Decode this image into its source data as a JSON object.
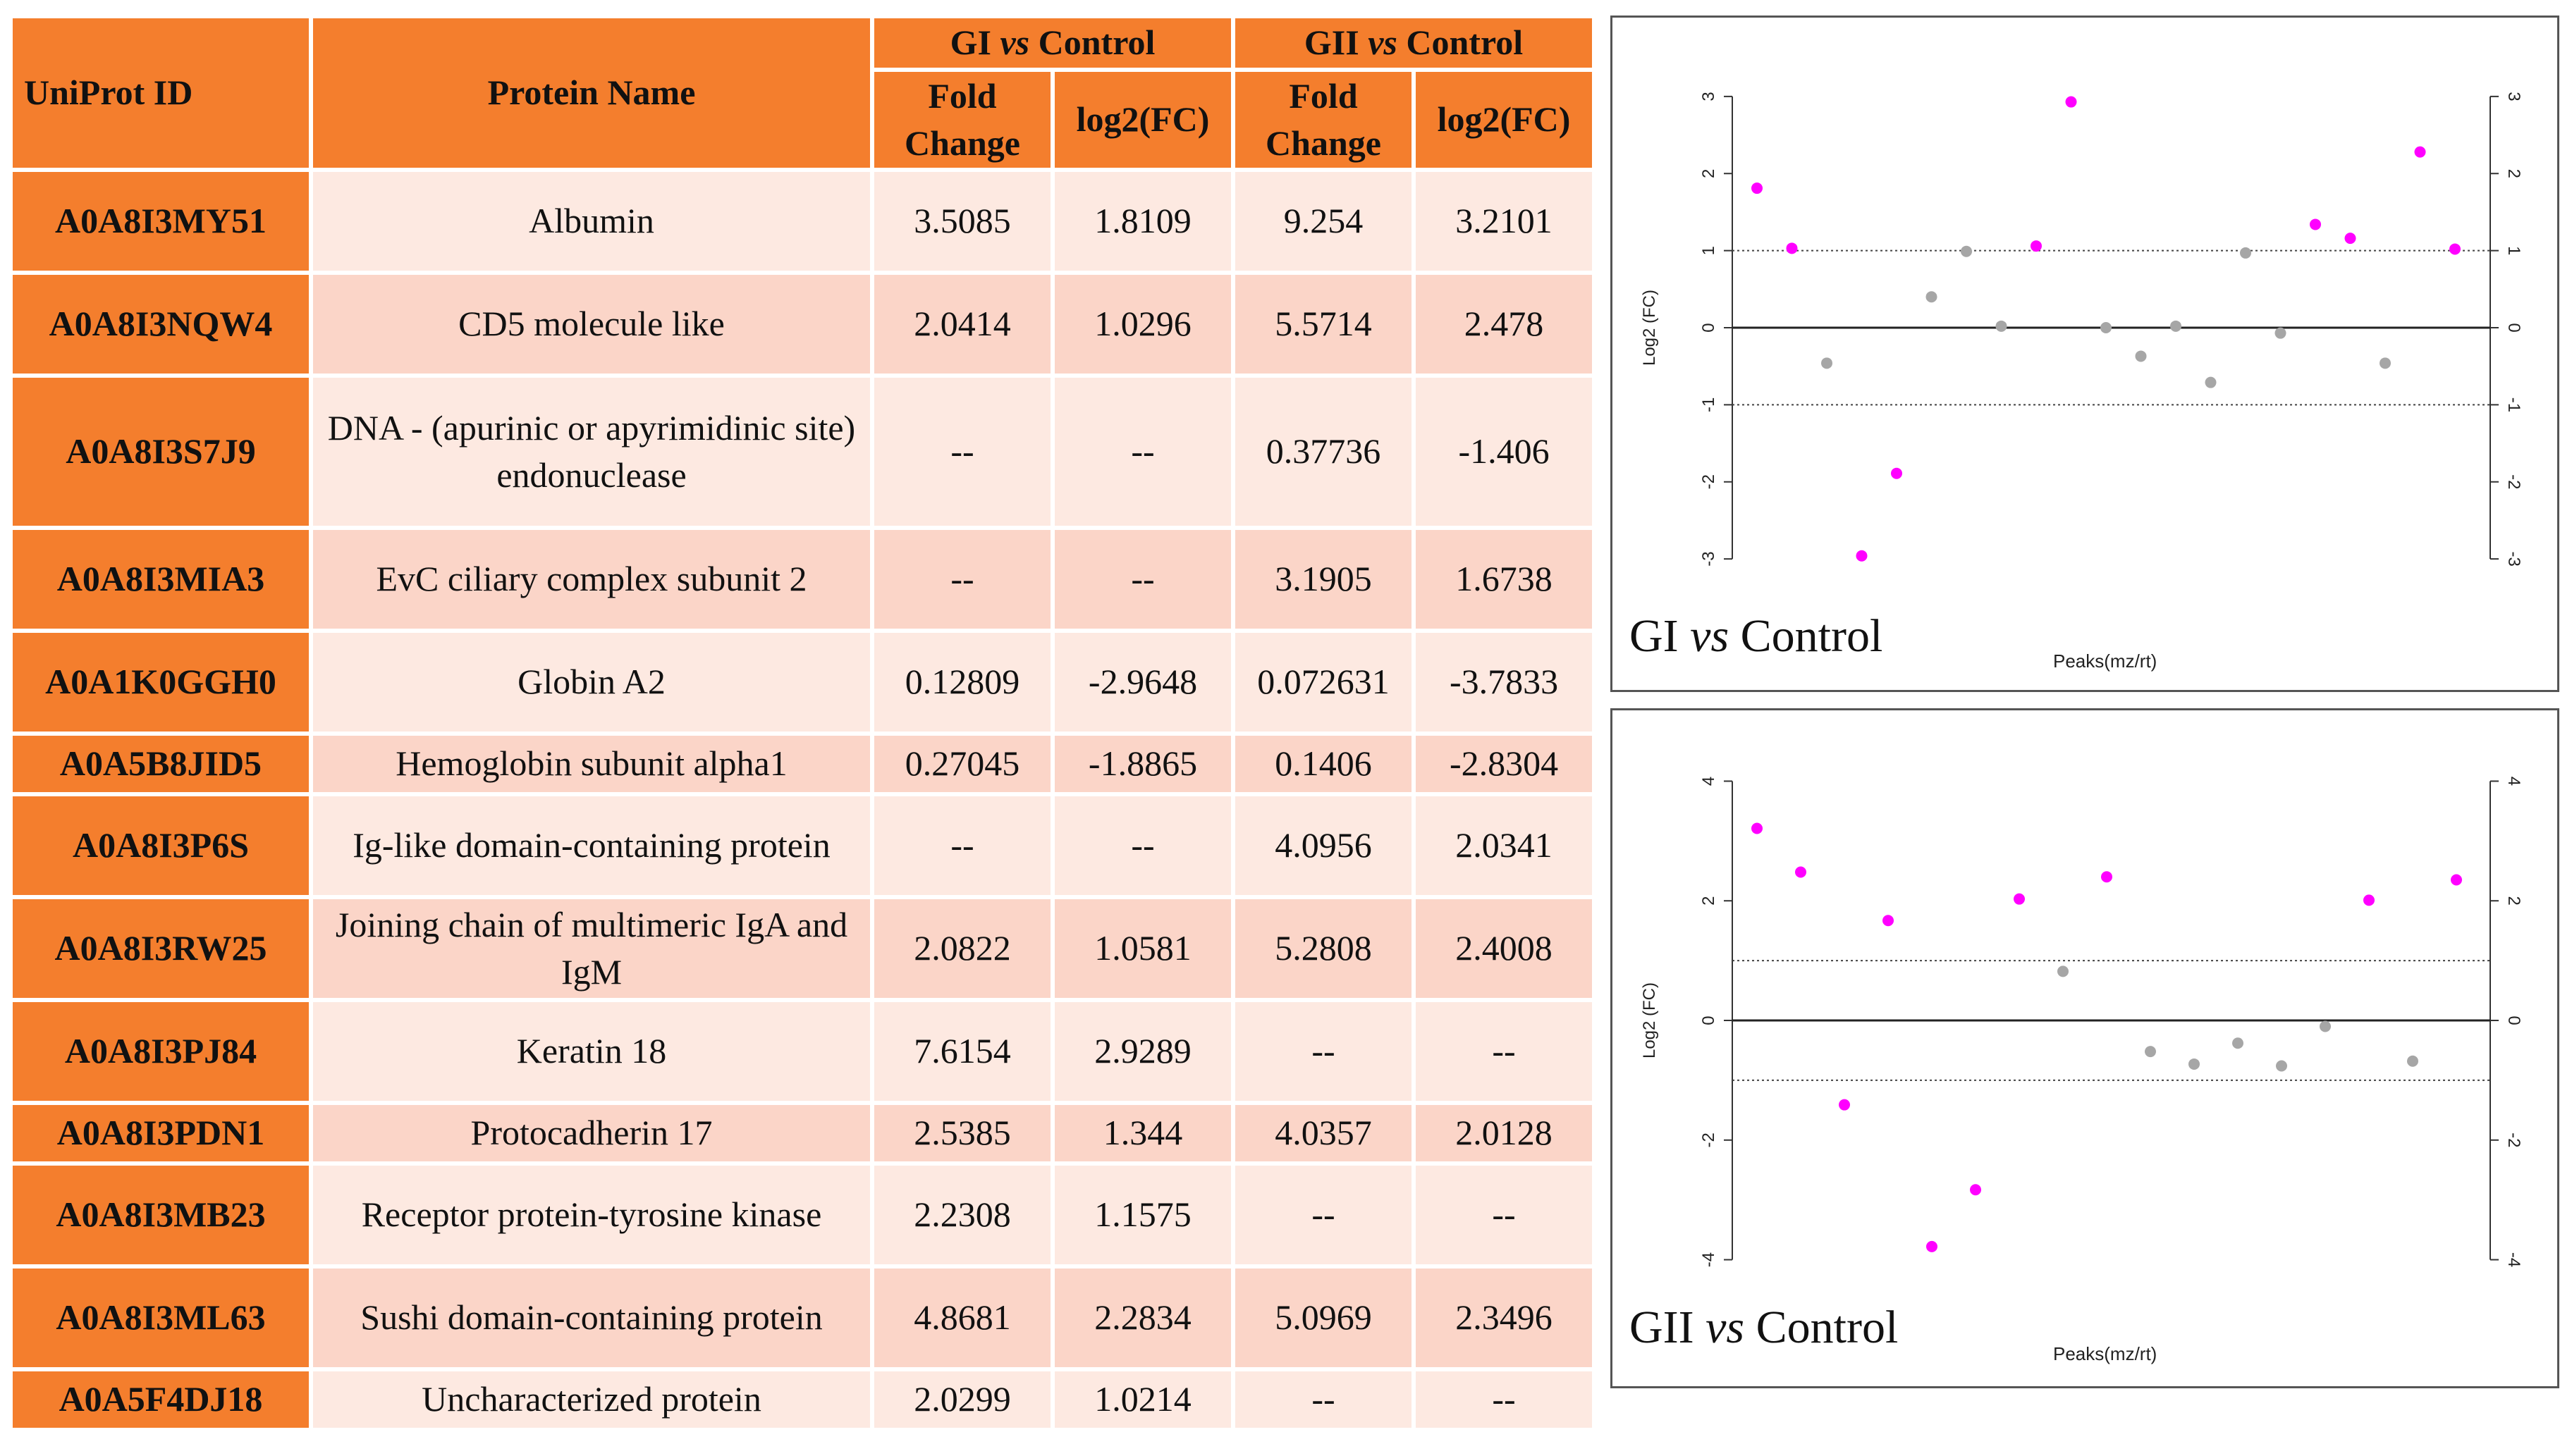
{
  "table": {
    "headers": {
      "uniprot": "UniProt ID",
      "protein_name": "Protein Name",
      "gi_group": {
        "prefix": "GI ",
        "vs": "vs",
        "suffix": " Control"
      },
      "gii_group": {
        "prefix": "GII ",
        "vs": "vs",
        "suffix": " Control"
      },
      "fold_change_line1": "Fold",
      "fold_change_line2": "Change",
      "log2fc": "log2(FC)"
    },
    "rows": [
      {
        "id": "A0A8I3MY51",
        "name": "Albumin",
        "gi_fc": "3.5085",
        "gi_log2": "1.8109",
        "gii_fc": "9.254",
        "gii_log2": "3.2101"
      },
      {
        "id": "A0A8I3NQW4",
        "name": "CD5 molecule like",
        "gi_fc": "2.0414",
        "gi_log2": "1.0296",
        "gii_fc": "5.5714",
        "gii_log2": "2.478"
      },
      {
        "id": "A0A8I3S7J9",
        "name": "DNA - (apurinic or apyrimidinic site) endonuclease",
        "gi_fc": "--",
        "gi_log2": "--",
        "gii_fc": "0.37736",
        "gii_log2": "-1.406"
      },
      {
        "id": "A0A8I3MIA3",
        "name": "EvC ciliary complex subunit 2",
        "gi_fc": "--",
        "gi_log2": "--",
        "gii_fc": "3.1905",
        "gii_log2": "1.6738"
      },
      {
        "id": "A0A1K0GGH0",
        "name": "Globin A2",
        "gi_fc": "0.12809",
        "gi_log2": "-2.9648",
        "gii_fc": "0.072631",
        "gii_log2": "-3.7833"
      },
      {
        "id": "A0A5B8JID5",
        "name": "Hemoglobin subunit alpha1",
        "gi_fc": "0.27045",
        "gi_log2": "-1.8865",
        "gii_fc": "0.1406",
        "gii_log2": "-2.8304"
      },
      {
        "id": "A0A8I3P6S",
        "name": "Ig-like domain-containing protein",
        "gi_fc": "--",
        "gi_log2": "--",
        "gii_fc": "4.0956",
        "gii_log2": "2.0341"
      },
      {
        "id": "A0A8I3RW25",
        "name": "Joining chain of multimeric IgA and IgM",
        "gi_fc": "2.0822",
        "gi_log2": "1.0581",
        "gii_fc": "5.2808",
        "gii_log2": "2.4008"
      },
      {
        "id": "A0A8I3PJ84",
        "name": "Keratin 18",
        "gi_fc": "7.6154",
        "gi_log2": "2.9289",
        "gii_fc": "--",
        "gii_log2": "--"
      },
      {
        "id": "A0A8I3PDN1",
        "name": "Protocadherin 17",
        "gi_fc": "2.5385",
        "gi_log2": "1.344",
        "gii_fc": "4.0357",
        "gii_log2": "2.0128"
      },
      {
        "id": "A0A8I3MB23",
        "name": "Receptor protein-tyrosine kinase",
        "gi_fc": "2.2308",
        "gi_log2": "1.1575",
        "gii_fc": "--",
        "gii_log2": "--"
      },
      {
        "id": "A0A8I3ML63",
        "name": "Sushi domain-containing protein",
        "gi_fc": "4.8681",
        "gi_log2": "2.2834",
        "gii_fc": "5.0969",
        "gii_log2": "2.3496"
      },
      {
        "id": "A0A5F4DJ18",
        "name": "Uncharacterized  protein",
        "gi_fc": "2.0299",
        "gi_log2": "1.0214",
        "gii_fc": "--",
        "gii_log2": "--"
      }
    ]
  },
  "colors": {
    "header_orange": "#f47e2d",
    "row_light": "#fde9e1",
    "row_dark": "#fbd5c8",
    "significant": "#ff00ff",
    "nonsignificant": "#a6a6a6"
  },
  "chart_data": [
    {
      "type": "scatter",
      "title_prefix": "GI ",
      "title_vs": "vs",
      "title_suffix": " Control",
      "xlabel": "Peaks(mz/rt)",
      "ylabel": "Log2 (FC)",
      "ylim": [
        -3.2,
        3.2
      ],
      "yticks": [
        -3,
        -2,
        -1,
        0,
        1,
        2,
        3
      ],
      "thresholds": [
        -1,
        1
      ],
      "x": [
        1,
        2,
        3,
        4,
        5,
        6,
        7,
        8,
        9,
        10,
        11,
        12,
        13,
        14,
        15,
        16,
        17,
        18,
        19,
        20,
        21,
        22
      ],
      "y": [
        1.81,
        1.03,
        -0.46,
        -2.96,
        -1.89,
        0.4,
        0.99,
        0.02,
        1.06,
        2.93,
        0.0,
        -0.37,
        0.02,
        -0.71,
        0.97,
        -0.07,
        1.34,
        1.16,
        -0.46,
        2.28,
        1.02,
        null
      ],
      "significant": [
        true,
        true,
        false,
        true,
        true,
        false,
        false,
        false,
        true,
        true,
        false,
        false,
        false,
        false,
        false,
        false,
        true,
        true,
        false,
        true,
        true,
        false
      ]
    },
    {
      "type": "scatter",
      "title_prefix": "GII ",
      "title_vs": "vs",
      "title_suffix": " Control",
      "xlabel": "Peaks(mz/rt)",
      "ylabel": "Log2 (FC)",
      "ylim": [
        -4.3,
        4.3
      ],
      "yticks": [
        -4,
        -2,
        0,
        2,
        4
      ],
      "thresholds": [
        -1,
        1
      ],
      "x": [
        1,
        2,
        3,
        4,
        5,
        6,
        7,
        8,
        9,
        10,
        11,
        12,
        13,
        14,
        15,
        16,
        17,
        18,
        19,
        20,
        21
      ],
      "y": [
        3.21,
        2.48,
        -1.41,
        1.67,
        -3.78,
        -2.83,
        2.03,
        0.82,
        2.4,
        -0.52,
        -0.73,
        -0.38,
        -0.76,
        -0.1,
        2.01,
        -0.68,
        2.35,
        null,
        null,
        null,
        null
      ],
      "significant": [
        true,
        true,
        true,
        true,
        true,
        true,
        true,
        false,
        true,
        false,
        false,
        false,
        false,
        false,
        true,
        false,
        true,
        false,
        false,
        false,
        false
      ]
    }
  ]
}
